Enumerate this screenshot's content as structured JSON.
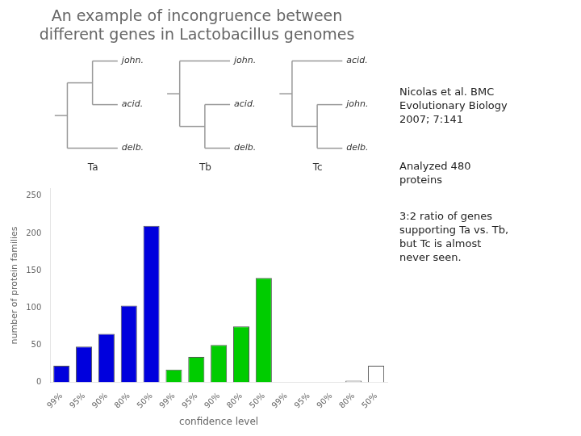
{
  "chart_data": {
    "type": "bar",
    "title": "An example of incongruence between\ndifferent genes in Lactobacillus genomes",
    "xlabel": "confidence level",
    "ylabel": "number of protein families",
    "categories": [
      "99%",
      "95%",
      "90%",
      "80%",
      "50%",
      "99%",
      "95%",
      "90%",
      "80%",
      "50%",
      "99%",
      "95%",
      "90%",
      "80%",
      "50%"
    ],
    "values": [
      22,
      48,
      65,
      103,
      210,
      17,
      34,
      50,
      75,
      140,
      0,
      0,
      0,
      2,
      22
    ],
    "colors": [
      "#0000dd",
      "#0000dd",
      "#0000dd",
      "#0000dd",
      "#0000dd",
      "#00cc00",
      "#00cc00",
      "#00cc00",
      "#00cc00",
      "#00cc00",
      "#ffffff",
      "#ffffff",
      "#ffffff",
      "#ffffff",
      "#ffffff"
    ],
    "ylim": [
      0,
      260
    ],
    "yticks": [
      0,
      50,
      100,
      150,
      200,
      250
    ],
    "grid": false,
    "annotations": [
      "Nicolas et al. BMC\nEvolutionary Biology\n2007; 7:141",
      "Analyzed 480\nproteins",
      "3:2 ratio of genes\nsupporting Ta vs. Tb,\nbut Tc is almost\nnever seen."
    ],
    "trees": [
      {
        "name": "Ta",
        "leaves": [
          [
            "john.",
            "acid."
          ],
          "delb."
        ]
      },
      {
        "name": "Tb",
        "leaves": [
          "john.",
          [
            "acid.",
            "delb."
          ]
        ]
      },
      {
        "name": "Tc",
        "leaves": [
          "acid.",
          [
            "john.",
            "delb."
          ]
        ]
      }
    ]
  }
}
